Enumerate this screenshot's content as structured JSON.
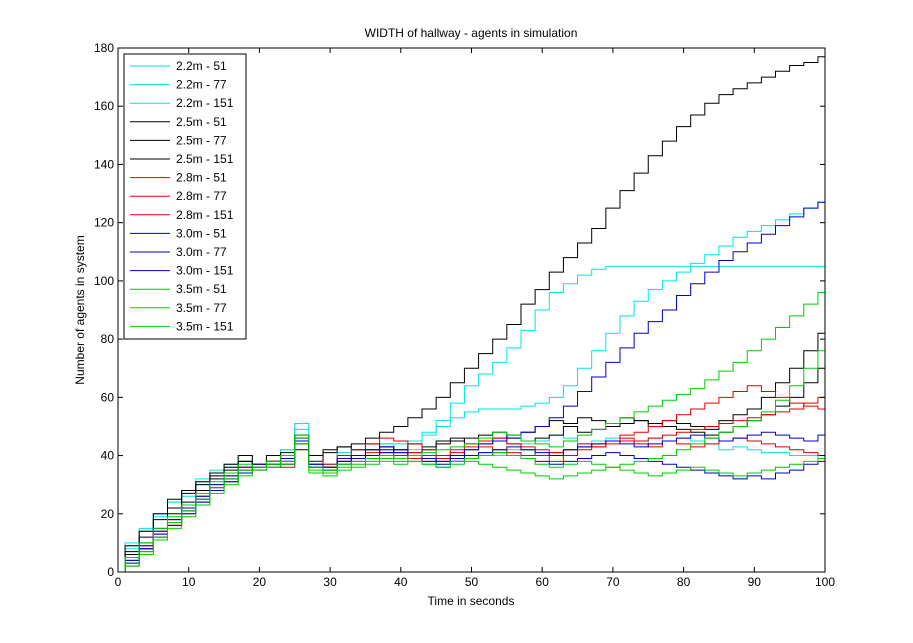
{
  "chart_data": {
    "type": "line",
    "title": "WIDTH of hallway - agents in simulation",
    "xlabel": "Time in seconds",
    "ylabel": "Number of agents in system",
    "xlim": [
      0,
      100
    ],
    "ylim": [
      0,
      180
    ],
    "xticks": [
      "0",
      "10",
      "20",
      "30",
      "40",
      "50",
      "60",
      "70",
      "80",
      "90",
      "100"
    ],
    "yticks": [
      "0",
      "20",
      "40",
      "60",
      "80",
      "100",
      "120",
      "140",
      "160",
      "180"
    ],
    "grid": false,
    "legend_position": "top-left",
    "x": [
      0,
      2,
      4,
      6,
      8,
      10,
      12,
      14,
      16,
      18,
      20,
      22,
      24,
      26,
      28,
      30,
      32,
      34,
      36,
      38,
      40,
      42,
      44,
      46,
      48,
      50,
      52,
      54,
      56,
      58,
      60,
      62,
      64,
      66,
      68,
      70,
      72,
      74,
      76,
      78,
      80,
      82,
      84,
      86,
      88,
      90,
      92,
      94,
      96,
      98,
      100
    ],
    "series": [
      {
        "name": "2.2m - 51",
        "color": "#00e5e5",
        "values": [
          0,
          9,
          14,
          20,
          24,
          28,
          31,
          34,
          37,
          38,
          36,
          38,
          40,
          51,
          38,
          36,
          40,
          42,
          40,
          42,
          40,
          42,
          40,
          36,
          38,
          40,
          41,
          40,
          42,
          44,
          45,
          47,
          46,
          44,
          45,
          46,
          45,
          44,
          46,
          45,
          46,
          45,
          44,
          42,
          43,
          42,
          41,
          41,
          40,
          40,
          39
        ]
      },
      {
        "name": "2.2m - 77",
        "color": "#00e5e5",
        "values": [
          0,
          10,
          15,
          19,
          22,
          26,
          30,
          33,
          36,
          38,
          37,
          40,
          42,
          51,
          38,
          37,
          41,
          42,
          42,
          44,
          42,
          44,
          47,
          52,
          58,
          64,
          68,
          72,
          77,
          83,
          90,
          96,
          99,
          102,
          104,
          105,
          105,
          105,
          105,
          105,
          105,
          105,
          105,
          105,
          105,
          105,
          105,
          105,
          105,
          105,
          105
        ]
      },
      {
        "name": "2.2m - 151",
        "color": "#00e5e5",
        "values": [
          0,
          8,
          14,
          20,
          24,
          28,
          32,
          35,
          37,
          40,
          37,
          40,
          42,
          49,
          36,
          37,
          40,
          42,
          42,
          44,
          44,
          45,
          48,
          50,
          53,
          55,
          56,
          56,
          56,
          57,
          58,
          60,
          64,
          70,
          76,
          82,
          88,
          93,
          97,
          100,
          103,
          106,
          109,
          112,
          115,
          117,
          119,
          121,
          123,
          125,
          127
        ]
      },
      {
        "name": "2.5m - 51",
        "color": "#000000",
        "values": [
          0,
          9,
          14,
          20,
          25,
          28,
          31,
          34,
          37,
          40,
          36,
          38,
          41,
          47,
          40,
          42,
          43,
          44,
          46,
          48,
          50,
          53,
          56,
          60,
          65,
          70,
          75,
          80,
          85,
          92,
          97,
          103,
          108,
          113,
          118,
          125,
          131,
          137,
          143,
          148,
          153,
          157,
          161,
          164,
          166,
          168,
          170,
          172,
          174,
          175,
          177
        ]
      },
      {
        "name": "2.5m - 77",
        "color": "#000000",
        "values": [
          0,
          7,
          12,
          18,
          22,
          27,
          30,
          33,
          35,
          38,
          37,
          40,
          39,
          45,
          38,
          41,
          43,
          42,
          44,
          43,
          42,
          44,
          43,
          45,
          46,
          44,
          45,
          46,
          47,
          45,
          46,
          47,
          50,
          48,
          49,
          50,
          51,
          52,
          50,
          52,
          51,
          50,
          49,
          52,
          54,
          56,
          60,
          65,
          70,
          76,
          82
        ]
      },
      {
        "name": "2.5m - 151",
        "color": "#000000",
        "values": [
          0,
          6,
          10,
          15,
          20,
          24,
          28,
          32,
          36,
          38,
          36,
          38,
          39,
          42,
          37,
          36,
          38,
          40,
          42,
          40,
          39,
          41,
          42,
          44,
          45,
          46,
          47,
          48,
          46,
          48,
          50,
          52,
          51,
          53,
          52,
          51,
          53,
          52,
          51,
          50,
          49,
          48,
          47,
          48,
          50,
          52,
          54,
          57,
          60,
          65,
          70
        ]
      },
      {
        "name": "2.8m - 51",
        "color": "#e00000",
        "values": [
          0,
          4,
          9,
          14,
          18,
          22,
          26,
          30,
          33,
          36,
          37,
          38,
          37,
          46,
          38,
          37,
          40,
          42,
          44,
          46,
          45,
          44,
          42,
          40,
          42,
          44,
          45,
          46,
          44,
          42,
          40,
          38,
          42,
          44,
          43,
          45,
          47,
          48,
          50,
          52,
          54,
          56,
          58,
          60,
          62,
          64,
          62,
          60,
          58,
          57,
          56
        ]
      },
      {
        "name": "2.8m - 77",
        "color": "#e00000",
        "values": [
          0,
          3,
          8,
          13,
          17,
          21,
          25,
          29,
          32,
          35,
          36,
          37,
          38,
          45,
          36,
          35,
          38,
          40,
          41,
          43,
          42,
          41,
          40,
          39,
          40,
          42,
          43,
          42,
          41,
          40,
          40,
          41,
          42,
          43,
          44,
          45,
          46,
          45,
          46,
          47,
          48,
          49,
          50,
          51,
          52,
          53,
          54,
          55,
          56,
          58,
          60
        ]
      },
      {
        "name": "2.8m - 151",
        "color": "#e00000",
        "values": [
          0,
          2,
          7,
          12,
          16,
          20,
          24,
          28,
          31,
          34,
          36,
          37,
          36,
          44,
          37,
          36,
          38,
          39,
          40,
          41,
          40,
          39,
          38,
          40,
          41,
          43,
          44,
          45,
          44,
          43,
          42,
          41,
          40,
          42,
          43,
          44,
          45,
          44,
          43,
          45,
          44,
          43,
          44,
          45,
          46,
          45,
          44,
          43,
          42,
          41,
          40
        ]
      },
      {
        "name": "3.0m - 51",
        "color": "#0000cc",
        "values": [
          0,
          3,
          8,
          13,
          17,
          21,
          25,
          29,
          32,
          35,
          36,
          37,
          38,
          44,
          36,
          35,
          38,
          39,
          40,
          41,
          42,
          40,
          38,
          37,
          38,
          39,
          40,
          41,
          40,
          39,
          38,
          37,
          38,
          39,
          40,
          41,
          40,
          39,
          38,
          37,
          36,
          35,
          34,
          33,
          32,
          33,
          32,
          34,
          35,
          37,
          38
        ]
      },
      {
        "name": "3.0m - 77",
        "color": "#0000cc",
        "values": [
          0,
          4,
          9,
          14,
          18,
          22,
          26,
          30,
          33,
          36,
          37,
          38,
          39,
          46,
          37,
          36,
          39,
          40,
          42,
          43,
          41,
          40,
          39,
          38,
          40,
          42,
          44,
          45,
          46,
          48,
          50,
          53,
          57,
          62,
          67,
          72,
          77,
          82,
          86,
          90,
          95,
          99,
          103,
          107,
          110,
          113,
          116,
          119,
          122,
          125,
          127
        ]
      },
      {
        "name": "3.0m - 151",
        "color": "#0000cc",
        "values": [
          0,
          3,
          8,
          12,
          16,
          20,
          24,
          28,
          31,
          34,
          35,
          36,
          37,
          45,
          36,
          35,
          37,
          38,
          40,
          42,
          41,
          40,
          39,
          38,
          39,
          40,
          41,
          42,
          43,
          42,
          41,
          40,
          42,
          43,
          44,
          45,
          44,
          43,
          44,
          45,
          46,
          47,
          46,
          45,
          46,
          47,
          48,
          47,
          46,
          45,
          47
        ]
      },
      {
        "name": "3.5m - 51",
        "color": "#00cc00",
        "values": [
          0,
          5,
          10,
          15,
          19,
          23,
          27,
          31,
          34,
          37,
          36,
          38,
          40,
          47,
          36,
          35,
          37,
          38,
          39,
          40,
          39,
          38,
          37,
          36,
          37,
          38,
          37,
          36,
          35,
          34,
          33,
          32,
          33,
          34,
          35,
          36,
          37,
          38,
          39,
          40,
          42,
          44,
          46,
          48,
          50,
          52,
          55,
          59,
          64,
          70,
          76
        ]
      },
      {
        "name": "3.5m - 77",
        "color": "#00cc00",
        "values": [
          0,
          3,
          7,
          12,
          17,
          21,
          25,
          29,
          32,
          35,
          36,
          37,
          38,
          46,
          35,
          34,
          36,
          37,
          38,
          39,
          38,
          40,
          41,
          42,
          43,
          44,
          46,
          48,
          47,
          45,
          44,
          43,
          45,
          47,
          49,
          51,
          53,
          55,
          57,
          59,
          61,
          63,
          66,
          69,
          72,
          76,
          80,
          84,
          88,
          92,
          96
        ]
      },
      {
        "name": "3.5m - 151",
        "color": "#00cc00",
        "values": [
          0,
          2,
          6,
          11,
          15,
          19,
          23,
          27,
          30,
          33,
          35,
          36,
          37,
          44,
          34,
          33,
          35,
          36,
          37,
          38,
          37,
          38,
          37,
          36,
          38,
          39,
          40,
          41,
          40,
          39,
          37,
          36,
          37,
          38,
          37,
          36,
          35,
          34,
          33,
          34,
          35,
          36,
          35,
          34,
          33,
          34,
          35,
          36,
          37,
          38,
          39
        ]
      }
    ]
  }
}
